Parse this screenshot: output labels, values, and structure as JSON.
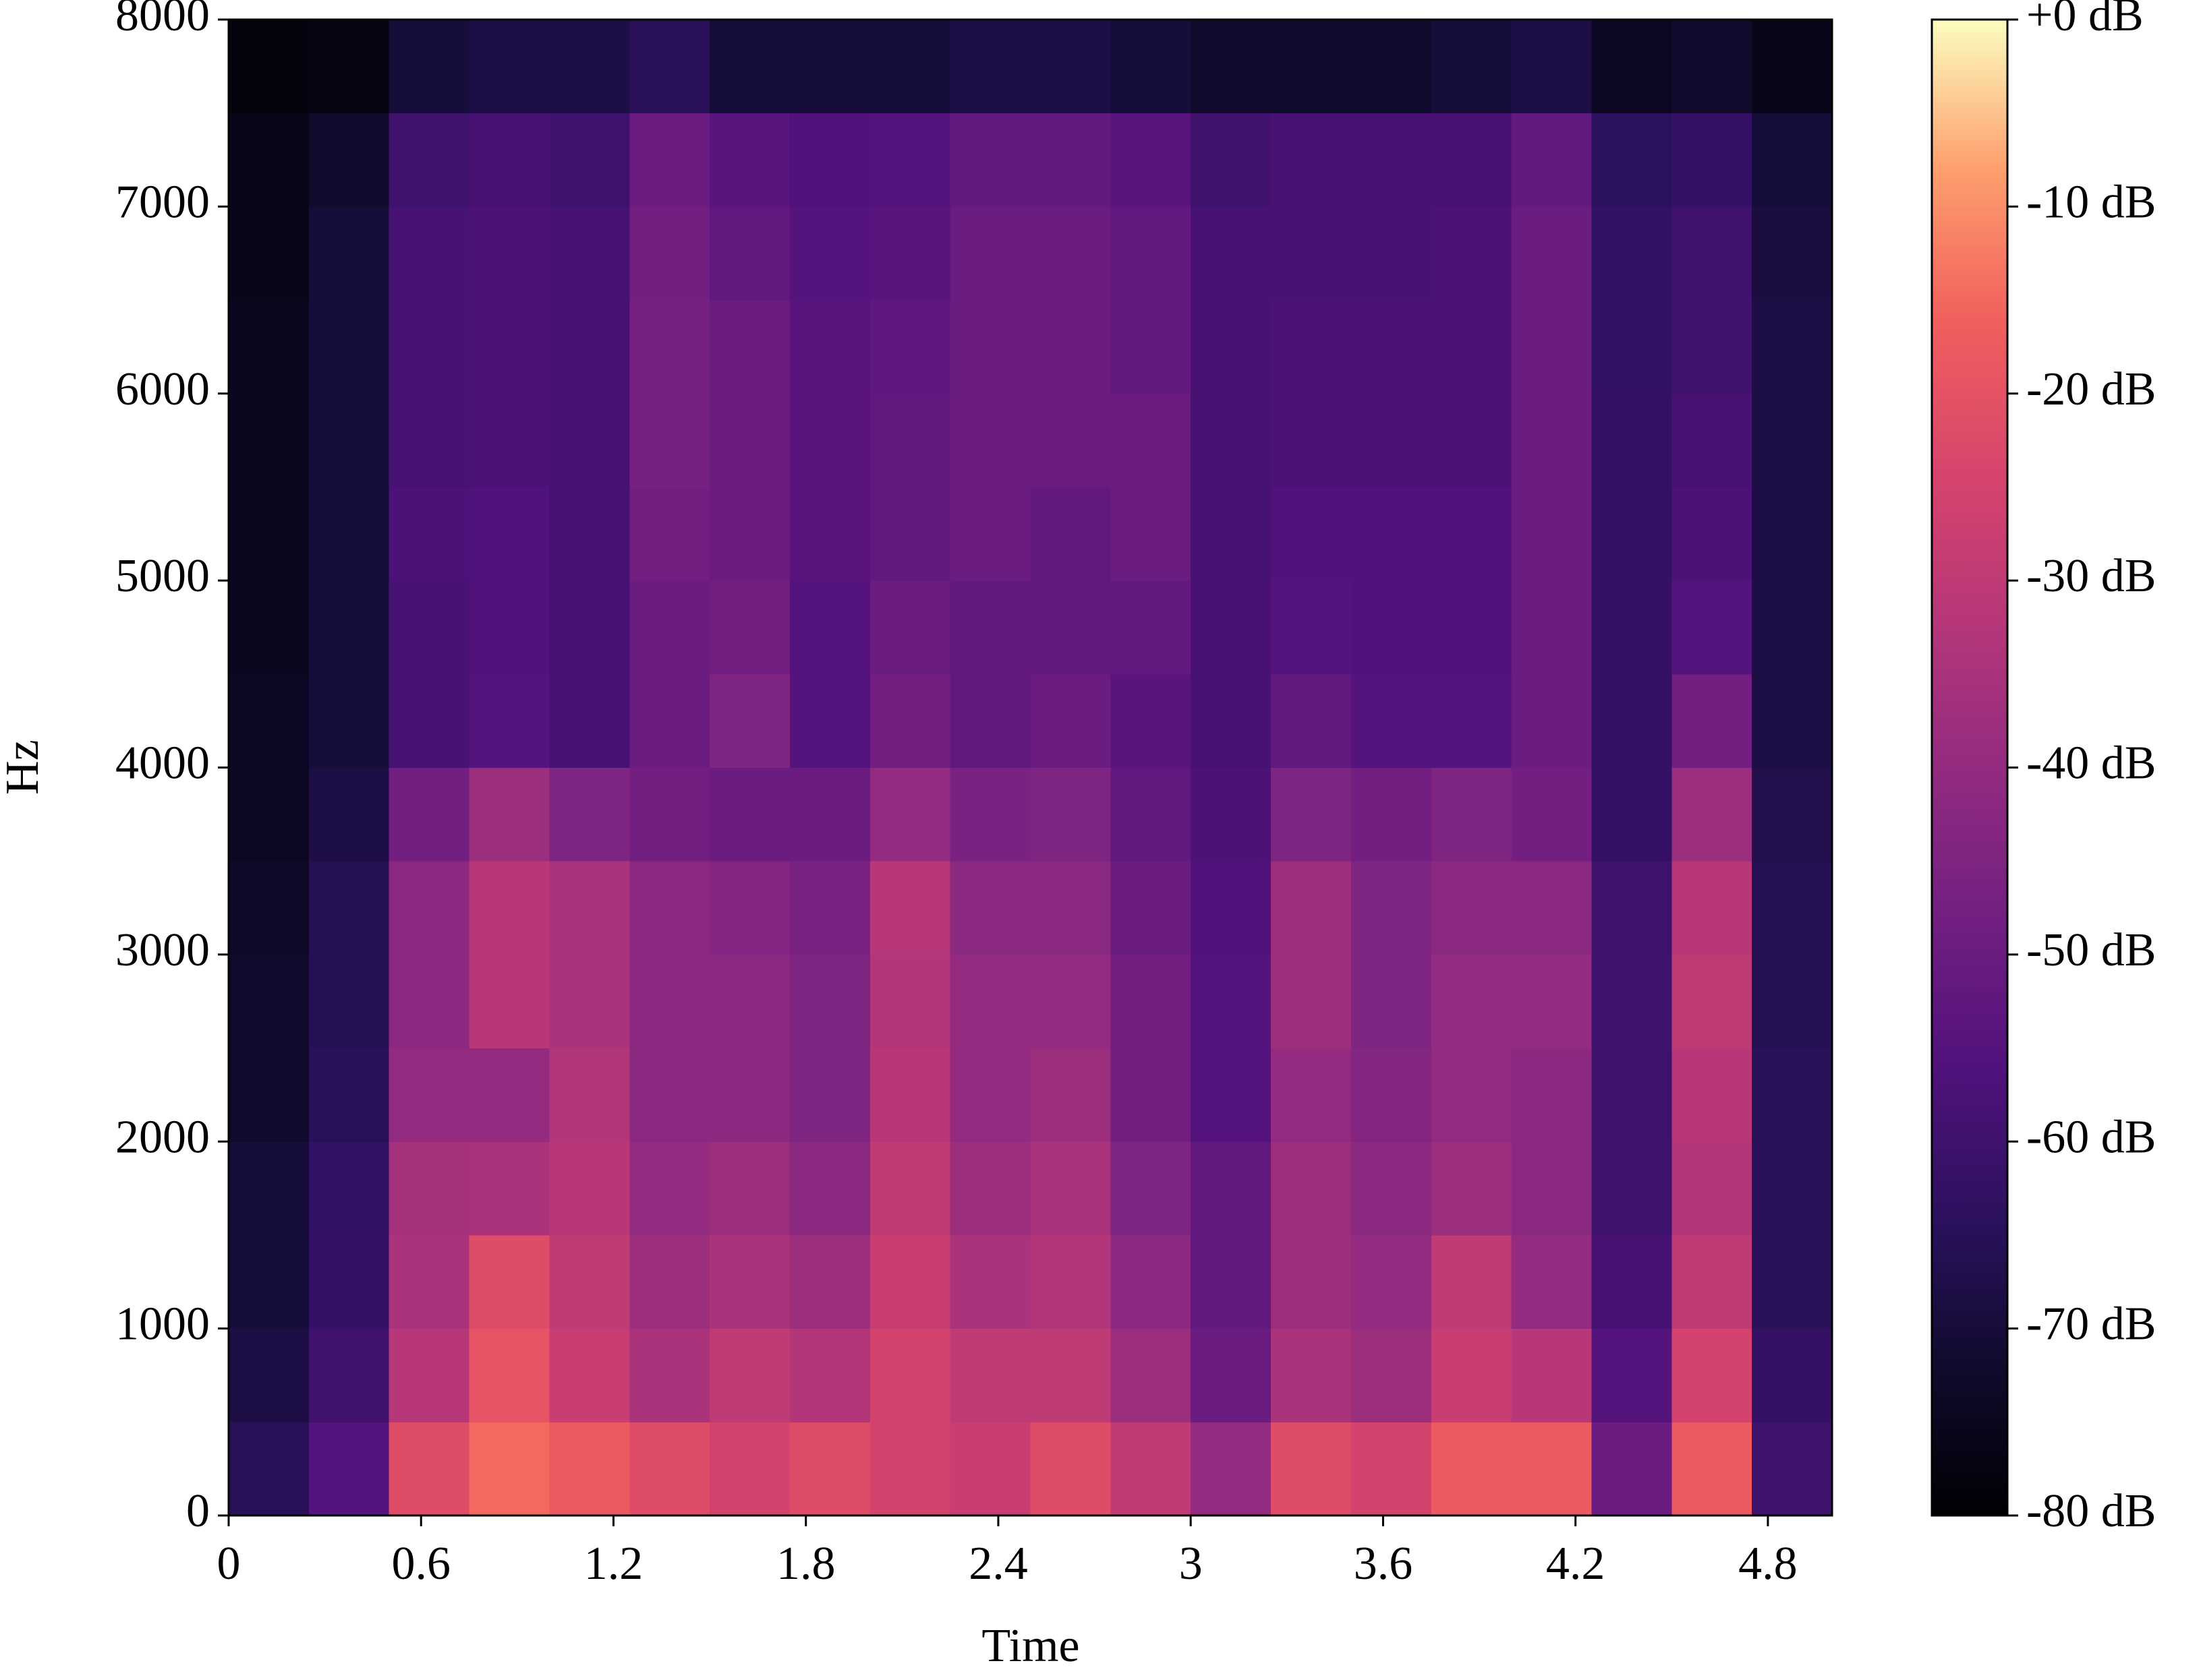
{
  "chart_data": {
    "type": "spectrogram",
    "xlabel": "Time",
    "ylabel": "Hz",
    "x": [
      0.125,
      0.375,
      0.625,
      0.875,
      1.125,
      1.375,
      1.625,
      1.875,
      2.125,
      2.375,
      2.625,
      2.875,
      3.125,
      3.375,
      3.625,
      3.875,
      4.125,
      4.375,
      4.625,
      4.875
    ],
    "y": [
      250,
      750,
      1250,
      1750,
      2250,
      2750,
      3250,
      3750,
      4250,
      4750,
      5250,
      5750,
      6250,
      6750,
      7250,
      7750
    ],
    "values": [
      [
        -65,
        -55,
        -22,
        -15,
        -18,
        -22,
        -25,
        -22,
        -25,
        -28,
        -22,
        -30,
        -40,
        -22,
        -25,
        -18,
        -18,
        -50,
        -18,
        -60
      ],
      [
        -68,
        -60,
        -32,
        -20,
        -28,
        -35,
        -30,
        -33,
        -25,
        -30,
        -30,
        -38,
        -50,
        -35,
        -38,
        -28,
        -32,
        -55,
        -25,
        -62
      ],
      [
        -70,
        -62,
        -35,
        -22,
        -30,
        -38,
        -35,
        -38,
        -28,
        -35,
        -33,
        -42,
        -52,
        -38,
        -40,
        -30,
        -40,
        -58,
        -30,
        -65
      ],
      [
        -70,
        -63,
        -36,
        -35,
        -32,
        -40,
        -38,
        -42,
        -30,
        -38,
        -35,
        -45,
        -52,
        -38,
        -42,
        -38,
        -42,
        -60,
        -33,
        -65
      ],
      [
        -72,
        -65,
        -40,
        -40,
        -33,
        -42,
        -42,
        -45,
        -32,
        -40,
        -38,
        -48,
        -55,
        -40,
        -44,
        -40,
        -42,
        -60,
        -32,
        -65
      ],
      [
        -72,
        -66,
        -42,
        -32,
        -35,
        -42,
        -42,
        -45,
        -33,
        -40,
        -40,
        -48,
        -55,
        -38,
        -45,
        -40,
        -40,
        -60,
        -30,
        -66
      ],
      [
        -73,
        -66,
        -42,
        -32,
        -35,
        -42,
        -44,
        -46,
        -32,
        -42,
        -42,
        -50,
        -56,
        -38,
        -45,
        -42,
        -42,
        -60,
        -32,
        -66
      ],
      [
        -74,
        -68,
        -48,
        -38,
        -45,
        -48,
        -50,
        -50,
        -40,
        -46,
        -45,
        -52,
        -57,
        -45,
        -48,
        -45,
        -48,
        -62,
        -38,
        -67
      ],
      [
        -74,
        -70,
        -58,
        -55,
        -58,
        -50,
        -45,
        -55,
        -48,
        -52,
        -50,
        -54,
        -58,
        -52,
        -55,
        -55,
        -50,
        -62,
        -48,
        -68
      ],
      [
        -75,
        -70,
        -58,
        -56,
        -58,
        -50,
        -48,
        -55,
        -50,
        -52,
        -52,
        -52,
        -58,
        -55,
        -56,
        -56,
        -50,
        -62,
        -55,
        -68
      ],
      [
        -75,
        -70,
        -57,
        -56,
        -58,
        -48,
        -50,
        -54,
        -52,
        -50,
        -52,
        -50,
        -58,
        -56,
        -56,
        -56,
        -50,
        -62,
        -57,
        -68
      ],
      [
        -75,
        -70,
        -58,
        -57,
        -58,
        -47,
        -50,
        -54,
        -52,
        -50,
        -50,
        -50,
        -58,
        -57,
        -57,
        -57,
        -50,
        -62,
        -58,
        -68
      ],
      [
        -75,
        -70,
        -58,
        -57,
        -58,
        -47,
        -50,
        -54,
        -53,
        -50,
        -50,
        -52,
        -58,
        -57,
        -57,
        -57,
        -50,
        -63,
        -60,
        -68
      ],
      [
        -76,
        -70,
        -58,
        -57,
        -58,
        -48,
        -52,
        -55,
        -54,
        -50,
        -50,
        -52,
        -58,
        -58,
        -58,
        -57,
        -50,
        -63,
        -60,
        -69
      ],
      [
        -76,
        -72,
        -60,
        -58,
        -60,
        -50,
        -54,
        -56,
        -55,
        -52,
        -52,
        -54,
        -60,
        -58,
        -58,
        -58,
        -52,
        -64,
        -62,
        -70
      ],
      [
        -78,
        -77,
        -70,
        -68,
        -68,
        -65,
        -70,
        -70,
        -70,
        -68,
        -68,
        -70,
        -72,
        -72,
        -72,
        -70,
        -68,
        -74,
        -72,
        -76
      ]
    ],
    "xlim": [
      0,
      5.0
    ],
    "ylim": [
      0,
      8000
    ],
    "xticks": [
      0,
      0.6,
      1.2,
      1.8,
      2.4,
      3,
      3.6,
      4.2,
      4.8
    ],
    "yticks": [
      0,
      1000,
      2000,
      3000,
      4000,
      5000,
      6000,
      7000,
      8000
    ],
    "colormap": "magma",
    "zlim": [
      -80,
      0
    ],
    "zticks": [
      {
        "value": -80,
        "label": "-80 dB"
      },
      {
        "value": -70,
        "label": "-70 dB"
      },
      {
        "value": -60,
        "label": "-60 dB"
      },
      {
        "value": -50,
        "label": "-50 dB"
      },
      {
        "value": -40,
        "label": "-40 dB"
      },
      {
        "value": -30,
        "label": "-30 dB"
      },
      {
        "value": -20,
        "label": "-20 dB"
      },
      {
        "value": -10,
        "label": "-10 dB"
      },
      {
        "value": 0,
        "label": "+0 dB"
      }
    ]
  }
}
